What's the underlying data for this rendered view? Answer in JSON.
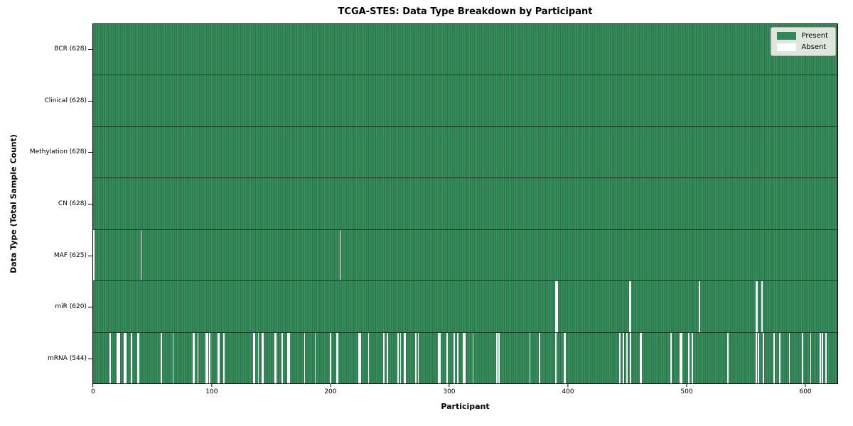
{
  "title": "TCGA-STES: Data Type Breakdown by Participant",
  "xlabel": "Participant",
  "ylabel": "Data Type (Total Sample Count)",
  "legend": {
    "present_label": "Present",
    "absent_label": "Absent"
  },
  "colors": {
    "present": "#2e8b57",
    "absent": "#ffffff",
    "cell_edge": "rgba(0,0,0,0.34)",
    "legend_bg": "#edefe9",
    "axes_edge": "#000000"
  },
  "chart_data": {
    "type": "heatmap",
    "title": "TCGA-STES: Data Type Breakdown by Participant",
    "xlabel": "Participant",
    "ylabel": "Data Type (Total Sample Count)",
    "n_participants": 628,
    "xlim": [
      0,
      628
    ],
    "x_ticks": [
      0,
      100,
      200,
      300,
      400,
      500,
      600
    ],
    "legend_entries": [
      "Present",
      "Absent"
    ],
    "legend_position": "upper right",
    "rows": [
      {
        "label": "BCR (628)",
        "name": "bcr",
        "total": 628,
        "absent": []
      },
      {
        "label": "Clinical (628)",
        "name": "clinical",
        "total": 628,
        "absent": []
      },
      {
        "label": "Methylation (628)",
        "name": "methylation",
        "total": 628,
        "absent": []
      },
      {
        "label": "CN (628)",
        "name": "cn",
        "total": 628,
        "absent": []
      },
      {
        "label": "MAF (625)",
        "name": "maf",
        "total": 625,
        "absent": [
          0,
          40,
          208
        ]
      },
      {
        "label": "miR (620)",
        "name": "mir",
        "total": 620,
        "absent": [
          390,
          391,
          452,
          453,
          511,
          559,
          560,
          564
        ]
      },
      {
        "label": "mRNA (544)",
        "name": "mrna",
        "total": 544,
        "absent": [
          14,
          20,
          21,
          22,
          26,
          27,
          32,
          37,
          38,
          57,
          67,
          84,
          85,
          88,
          95,
          96,
          98,
          105,
          106,
          110,
          135,
          136,
          139,
          142,
          143,
          153,
          154,
          159,
          164,
          165,
          178,
          187,
          200,
          205,
          206,
          224,
          225,
          232,
          245,
          248,
          257,
          259,
          262,
          263,
          272,
          274,
          291,
          292,
          298,
          304,
          307,
          312,
          313,
          320,
          340,
          342,
          368,
          376,
          390,
          397,
          398,
          444,
          447,
          450,
          453,
          461,
          462,
          487,
          495,
          496,
          502,
          505,
          535,
          559,
          561,
          565,
          574,
          579,
          587,
          598,
          605,
          613,
          615,
          618
        ]
      }
    ]
  }
}
